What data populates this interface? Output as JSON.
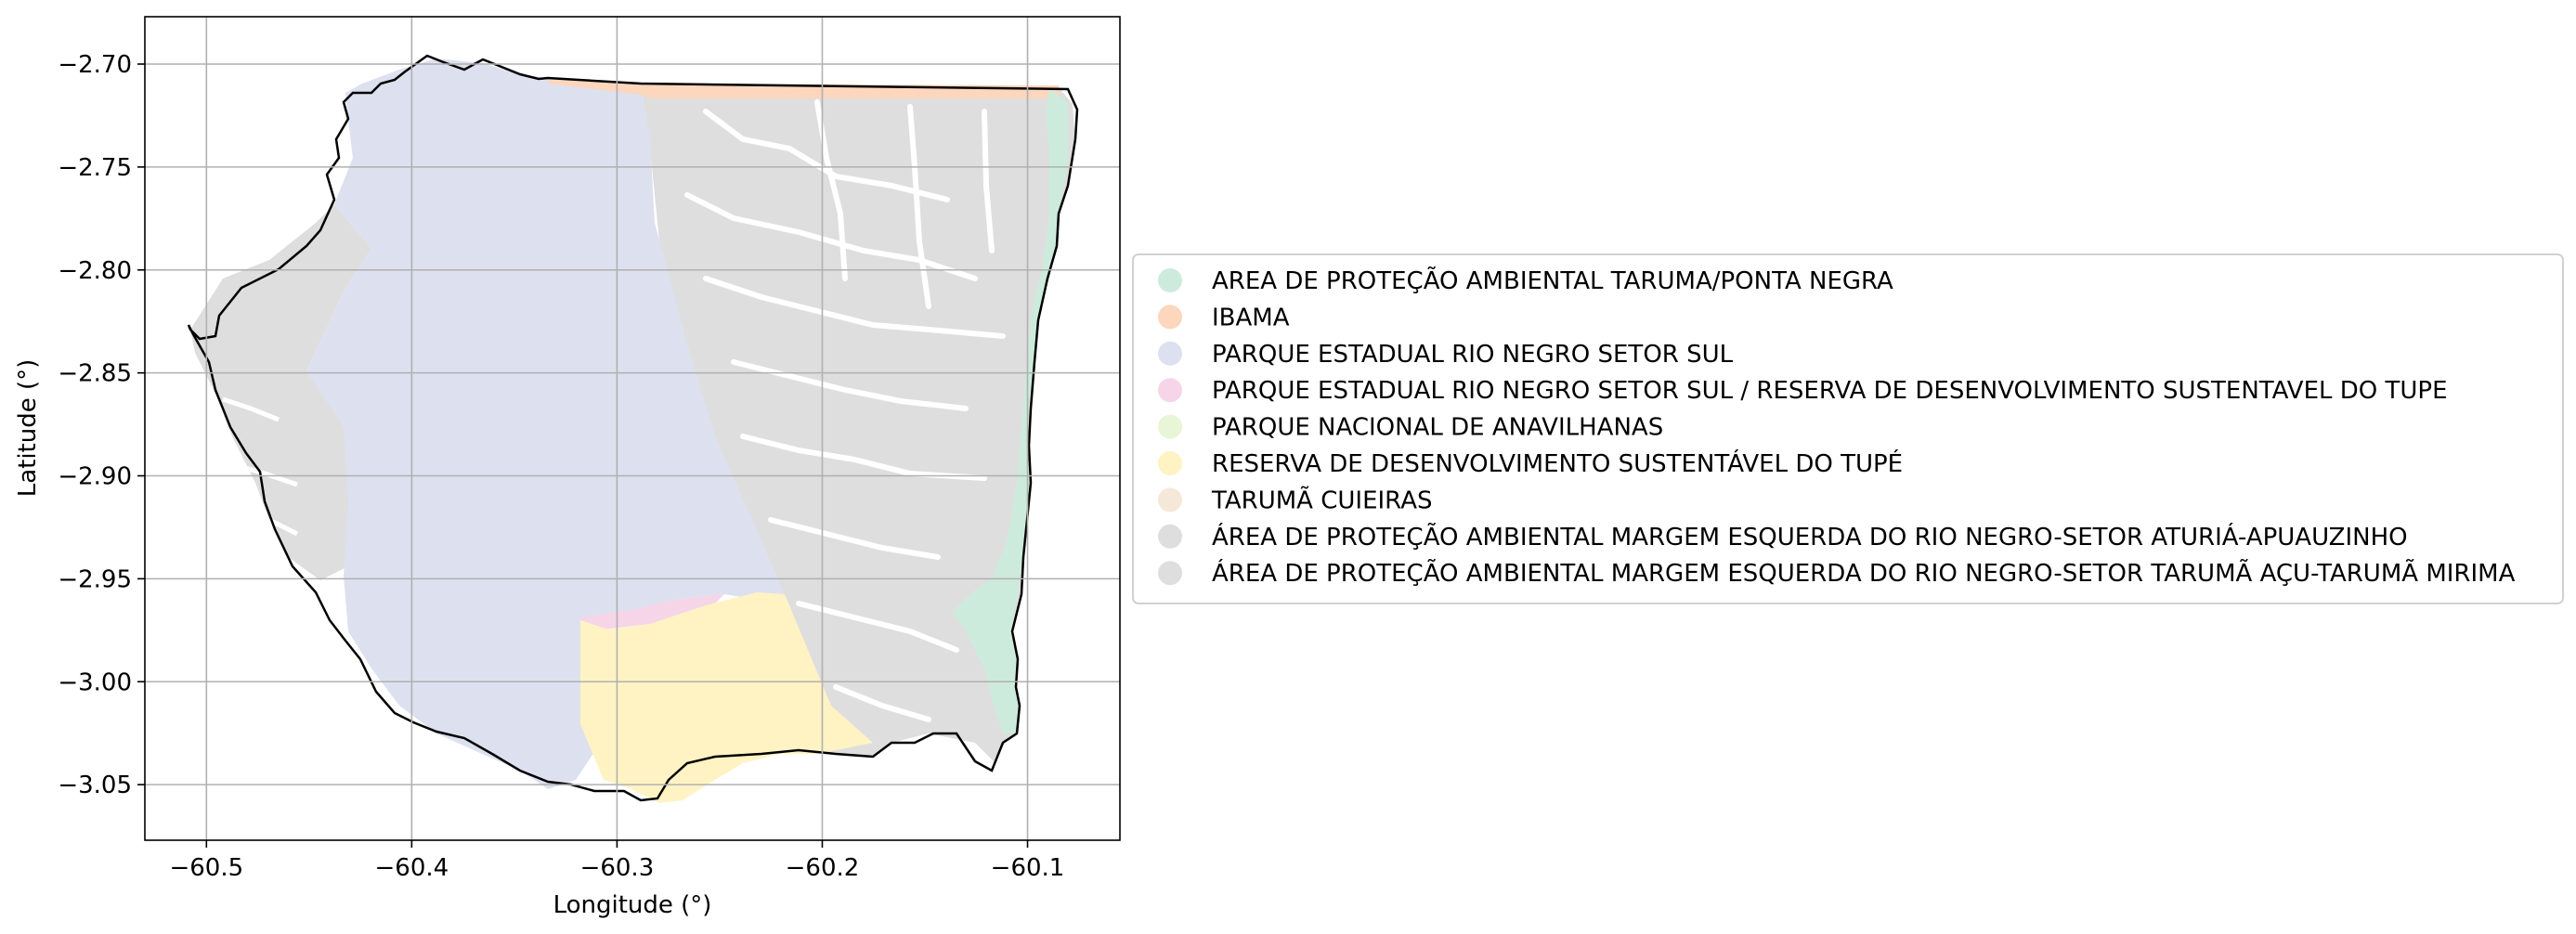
{
  "figure": {
    "xlabel": "Longitude (°)",
    "ylabel": "Latitude (°)",
    "xlim": [
      -60.53,
      -60.055
    ],
    "ylim": [
      -3.077,
      -2.677
    ],
    "xticks": [
      {
        "value": -60.5,
        "label": "−60.5"
      },
      {
        "value": -60.4,
        "label": "−60.4"
      },
      {
        "value": -60.3,
        "label": "−60.3"
      },
      {
        "value": -60.2,
        "label": "−60.2"
      },
      {
        "value": -60.1,
        "label": "−60.1"
      }
    ],
    "yticks": [
      {
        "value": -2.7,
        "label": "−2.70"
      },
      {
        "value": -2.75,
        "label": "−2.75"
      },
      {
        "value": -2.8,
        "label": "−2.80"
      },
      {
        "value": -2.85,
        "label": "−2.85"
      },
      {
        "value": -2.9,
        "label": "−2.90"
      },
      {
        "value": -2.95,
        "label": "−2.95"
      },
      {
        "value": -3.0,
        "label": "−3.00"
      },
      {
        "value": -3.05,
        "label": "−3.05"
      }
    ],
    "grid": true,
    "legend_position": "right"
  },
  "legend": [
    {
      "label": "AREA DE PROTEÇÃO AMBIENTAL TARUMA/PONTA NEGRA",
      "color": "#cdebdc"
    },
    {
      "label": "IBAMA",
      "color": "#fcd6bd"
    },
    {
      "label": "PARQUE ESTADUAL RIO NEGRO SETOR SUL",
      "color": "#dde1ef"
    },
    {
      "label": "PARQUE ESTADUAL RIO NEGRO SETOR SUL / RESERVA DE DESENVOLVIMENTO SUSTENTAVEL DO TUPE",
      "color": "#f6d5e8"
    },
    {
      "label": "PARQUE NACIONAL DE ANAVILHANAS",
      "color": "#e8f5d6"
    },
    {
      "label": "RESERVA DE DESENVOLVIMENTO SUSTENTÁVEL DO TUPÉ",
      "color": "#fff3c4"
    },
    {
      "label": "TARUMÃ CUIEIRAS",
      "color": "#f5e8d9"
    },
    {
      "label": "ÁREA DE PROTEÇÃO AMBIENTAL MARGEM ESQUERDA DO RIO NEGRO-SETOR ATURIÁ-APUAUZINHO",
      "color": "#dedede"
    },
    {
      "label": "ÁREA DE PROTEÇÃO AMBIENTAL MARGEM ESQUERDA DO RIO NEGRO-SETOR TARUMÃ AÇU-TARUMÃ MIRIMA",
      "color": "#dedede"
    }
  ],
  "colors": {
    "gray_zone": "#dedede",
    "boundary": "#000000",
    "grid": "#b0b0b0",
    "water": "#ffffff"
  }
}
